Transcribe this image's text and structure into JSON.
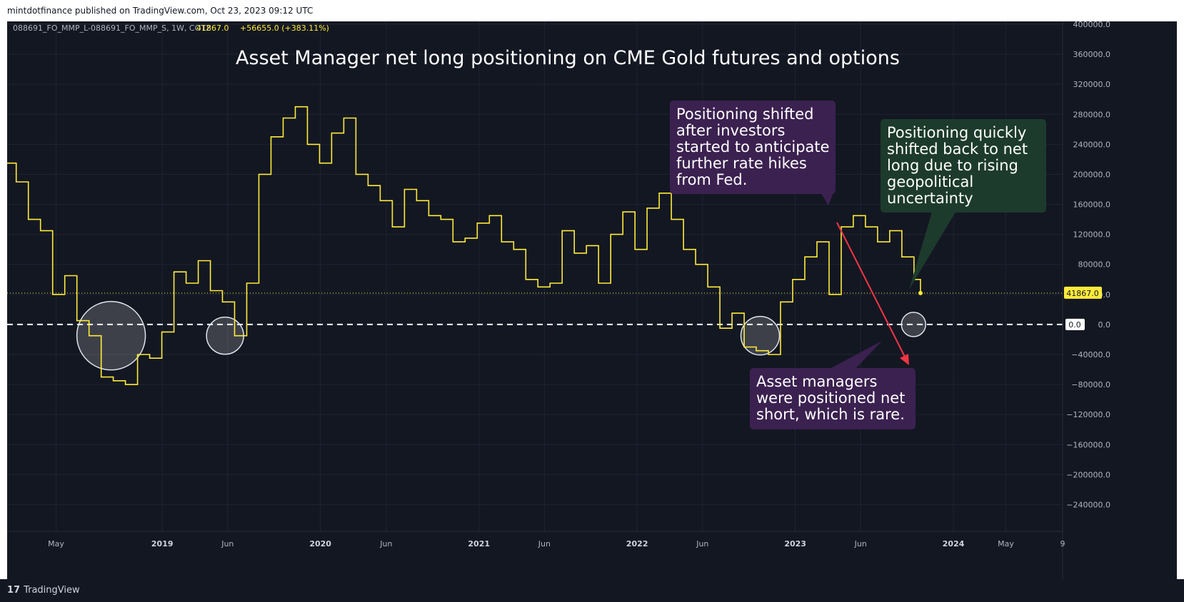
{
  "header": {
    "publish_line": "mintdotfinance published on TradingView.com, Oct 23, 2023 09:12 UTC"
  },
  "legend": {
    "symbol": "088691_FO_MMP_L-088691_FO_MMP_S, 1W, COT2",
    "value": "41867.0",
    "change": "+56655.0 (+383.11%)"
  },
  "footer": {
    "brand": "TradingView"
  },
  "annotations": [
    {
      "lines": [
        "Positioning shifted",
        "after investors",
        "started to anticipate",
        "further rate hikes",
        "from Fed."
      ],
      "color": "#3b2150"
    },
    {
      "lines": [
        "Positioning quickly",
        "shifted back to net",
        "long due to rising",
        "geopolitical",
        "uncertainty"
      ],
      "color": "#1d3b2c"
    },
    {
      "lines": [
        "Asset managers",
        "were positioned net",
        "short, which is rare."
      ],
      "color": "#3b2150"
    }
  ],
  "price_labels": {
    "last": "41867.0",
    "zero": "0.0"
  },
  "colors": {
    "background": "#131722",
    "line": "#ffeb3b",
    "grid": "#1f2433",
    "text": "#b2b5be",
    "arrow": "#f23645"
  },
  "chart_data": {
    "type": "line",
    "title": "Asset Manager net long positioning on CME Gold futures and options",
    "x_tick_labels": [
      "May",
      "2019",
      "Jun",
      "2020",
      "Jun",
      "2021",
      "Jun",
      "2022",
      "Jun",
      "2023",
      "Jun",
      "2024",
      "May",
      "9"
    ],
    "y_tick_labels": [
      "400000.0",
      "360000.0",
      "320000.0",
      "280000.0",
      "240000.0",
      "200000.0",
      "160000.0",
      "120000.0",
      "80000.0",
      "40000.0",
      "0.0",
      "−40000.0",
      "−80000.0",
      "−120000.0",
      "−160000.0",
      "−200000.0",
      "−240000.0"
    ],
    "ylim": [
      -270000,
      400000
    ],
    "xlim": [
      "2018-01-08",
      "2024-09-09"
    ],
    "last_value": 41867.0,
    "zero_line": 0.0,
    "series": [
      {
        "color": "#ffeb3b",
        "x": [
          "2018-01-01",
          "2018-01-29",
          "2018-02-26",
          "2018-03-26",
          "2018-04-23",
          "2018-05-21",
          "2018-06-18",
          "2018-07-16",
          "2018-08-13",
          "2018-09-10",
          "2018-10-08",
          "2018-11-05",
          "2018-12-03",
          "2018-12-31",
          "2019-01-28",
          "2019-02-25",
          "2019-03-25",
          "2019-04-22",
          "2019-05-20",
          "2019-06-17",
          "2019-07-15",
          "2019-08-12",
          "2019-09-09",
          "2019-10-07",
          "2019-11-04",
          "2019-12-02",
          "2019-12-30",
          "2020-01-27",
          "2020-02-24",
          "2020-03-23",
          "2020-04-20",
          "2020-05-18",
          "2020-06-15",
          "2020-07-13",
          "2020-08-10",
          "2020-09-07",
          "2020-10-05",
          "2020-11-02",
          "2020-11-30",
          "2020-12-28",
          "2021-01-25",
          "2021-02-22",
          "2021-03-22",
          "2021-04-19",
          "2021-05-17",
          "2021-06-14",
          "2021-07-12",
          "2021-08-09",
          "2021-09-06",
          "2021-10-04",
          "2021-11-01",
          "2021-11-29",
          "2021-12-27",
          "2022-01-24",
          "2022-02-21",
          "2022-03-21",
          "2022-04-18",
          "2022-05-16",
          "2022-06-13",
          "2022-07-11",
          "2022-08-08",
          "2022-09-05",
          "2022-10-03",
          "2022-10-31",
          "2022-11-28",
          "2022-12-26",
          "2023-01-23",
          "2023-02-20",
          "2023-03-20",
          "2023-04-17",
          "2023-05-15",
          "2023-06-12",
          "2023-07-10",
          "2023-08-07",
          "2023-09-04",
          "2023-10-02",
          "2023-10-17"
        ],
        "y": [
          215000,
          190000,
          140000,
          125000,
          40000,
          65000,
          5000,
          -15000,
          -70000,
          -75000,
          -80000,
          -40000,
          -45000,
          -10000,
          70000,
          55000,
          85000,
          45000,
          30000,
          -15000,
          55000,
          200000,
          250000,
          275000,
          290000,
          240000,
          215000,
          255000,
          275000,
          200000,
          185000,
          165000,
          130000,
          180000,
          165000,
          145000,
          140000,
          110000,
          115000,
          135000,
          145000,
          110000,
          100000,
          60000,
          50000,
          55000,
          125000,
          95000,
          105000,
          55000,
          120000,
          150000,
          100000,
          155000,
          175000,
          140000,
          100000,
          80000,
          50000,
          -5000,
          15000,
          -30000,
          -35000,
          -40000,
          30000,
          60000,
          90000,
          110000,
          40000,
          130000,
          145000,
          130000,
          110000,
          125000,
          90000,
          60000,
          41867
        ]
      }
    ]
  }
}
